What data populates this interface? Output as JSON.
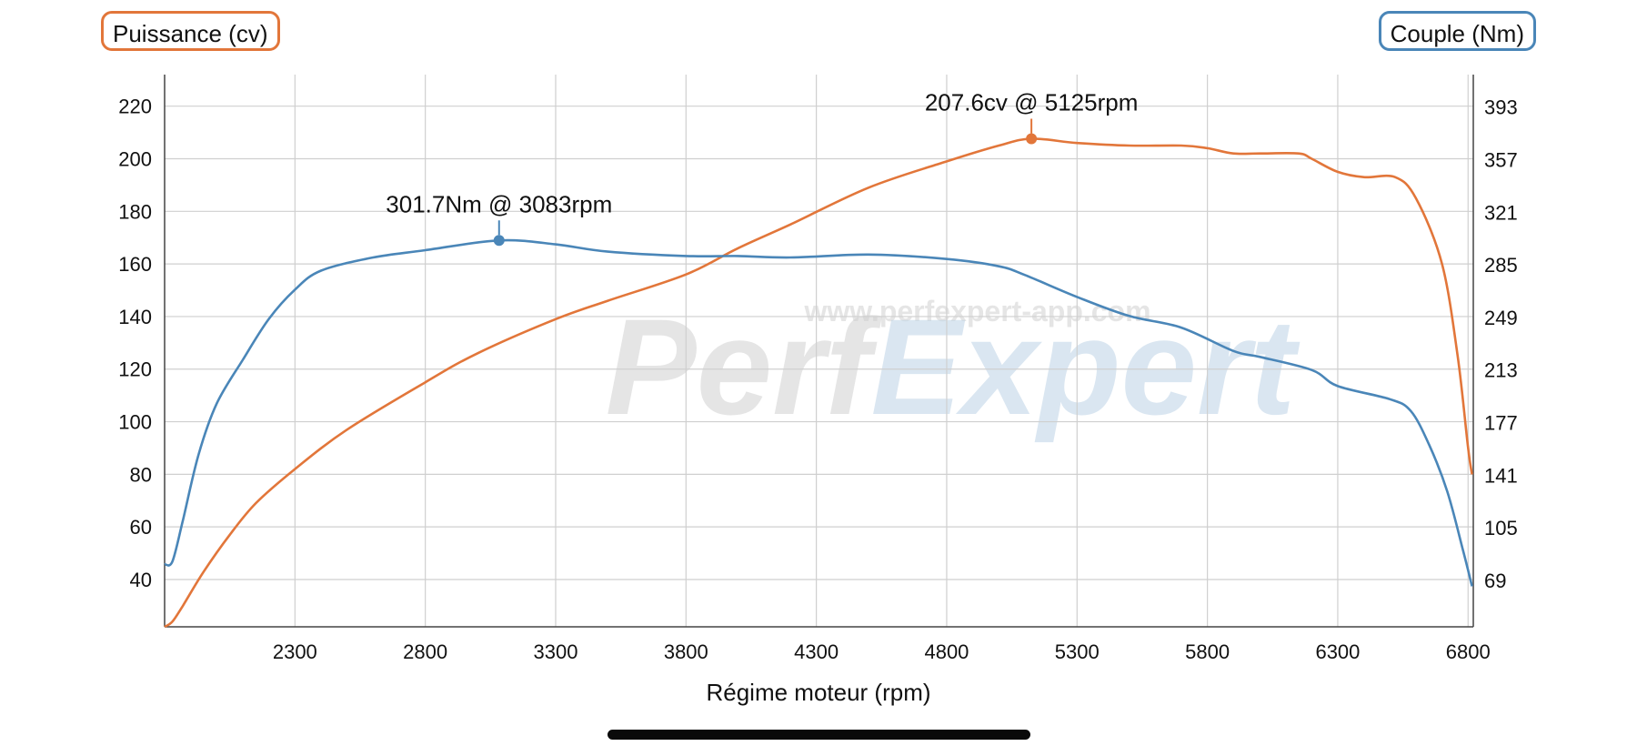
{
  "colors": {
    "power": "#e2763a",
    "torque": "#4a86b8",
    "grid": "#cfcfcf",
    "axis": "#444444",
    "watermark": "#d0d0d0",
    "watermark_accent": "#bcd3e6"
  },
  "watermark": {
    "brand_left": "Perf",
    "brand_right": "Expert",
    "url": "www.perfexpert-app.com"
  },
  "chart_data": {
    "type": "line",
    "xlabel": "Régime moteur (rpm)",
    "xlim": [
      1800,
      6820
    ],
    "x_ticks": [
      2300,
      2800,
      3300,
      3800,
      4300,
      4800,
      5300,
      5800,
      6300,
      6800
    ],
    "left_axis": {
      "label": "Puissance (cv)",
      "ylim": [
        22,
        232
      ],
      "ticks": [
        40,
        60,
        80,
        100,
        120,
        140,
        160,
        180,
        200,
        220
      ]
    },
    "right_axis": {
      "label": "Couple (Nm)",
      "ylim": [
        37.2,
        415.2
      ],
      "ticks": [
        69,
        105,
        141,
        177,
        213,
        249,
        285,
        321,
        357,
        393
      ]
    },
    "annotations": [
      {
        "series": "torque",
        "text": "301.7Nm @ 3083rpm",
        "x": 3083,
        "y": 301.7
      },
      {
        "series": "power",
        "text": "207.6cv @ 5125rpm",
        "x": 5125,
        "y": 207.6
      }
    ],
    "series": [
      {
        "key": "power",
        "axis": "left",
        "points": [
          [
            1800,
            22
          ],
          [
            1830,
            24
          ],
          [
            1870,
            30
          ],
          [
            1950,
            43
          ],
          [
            2050,
            57
          ],
          [
            2150,
            69
          ],
          [
            2300,
            82
          ],
          [
            2500,
            97
          ],
          [
            2800,
            115
          ],
          [
            3000,
            126
          ],
          [
            3300,
            139
          ],
          [
            3500,
            146
          ],
          [
            3800,
            156
          ],
          [
            4000,
            166
          ],
          [
            4200,
            175
          ],
          [
            4500,
            189
          ],
          [
            4800,
            199
          ],
          [
            5000,
            205
          ],
          [
            5125,
            207.6
          ],
          [
            5300,
            206
          ],
          [
            5500,
            205
          ],
          [
            5700,
            205
          ],
          [
            5800,
            204
          ],
          [
            5900,
            202
          ],
          [
            6000,
            202
          ],
          [
            6150,
            202
          ],
          [
            6200,
            200
          ],
          [
            6300,
            195
          ],
          [
            6400,
            193
          ],
          [
            6520,
            193
          ],
          [
            6600,
            185
          ],
          [
            6700,
            160
          ],
          [
            6760,
            125
          ],
          [
            6800,
            90
          ],
          [
            6815,
            80
          ]
        ]
      },
      {
        "key": "torque",
        "axis": "right",
        "points": [
          [
            1800,
            80
          ],
          [
            1830,
            82
          ],
          [
            1870,
            110
          ],
          [
            1930,
            155
          ],
          [
            2000,
            190
          ],
          [
            2100,
            220
          ],
          [
            2200,
            248
          ],
          [
            2300,
            268
          ],
          [
            2400,
            281
          ],
          [
            2600,
            290
          ],
          [
            2800,
            295
          ],
          [
            3083,
            301.7
          ],
          [
            3300,
            299
          ],
          [
            3500,
            294
          ],
          [
            3800,
            291
          ],
          [
            4000,
            291
          ],
          [
            4200,
            290
          ],
          [
            4500,
            292
          ],
          [
            4800,
            289
          ],
          [
            5000,
            284
          ],
          [
            5100,
            278
          ],
          [
            5300,
            263
          ],
          [
            5500,
            250
          ],
          [
            5700,
            242
          ],
          [
            5900,
            226
          ],
          [
            6000,
            222
          ],
          [
            6200,
            213
          ],
          [
            6300,
            202
          ],
          [
            6500,
            193
          ],
          [
            6580,
            185
          ],
          [
            6650,
            162
          ],
          [
            6720,
            130
          ],
          [
            6780,
            90
          ],
          [
            6815,
            65
          ]
        ]
      }
    ]
  }
}
